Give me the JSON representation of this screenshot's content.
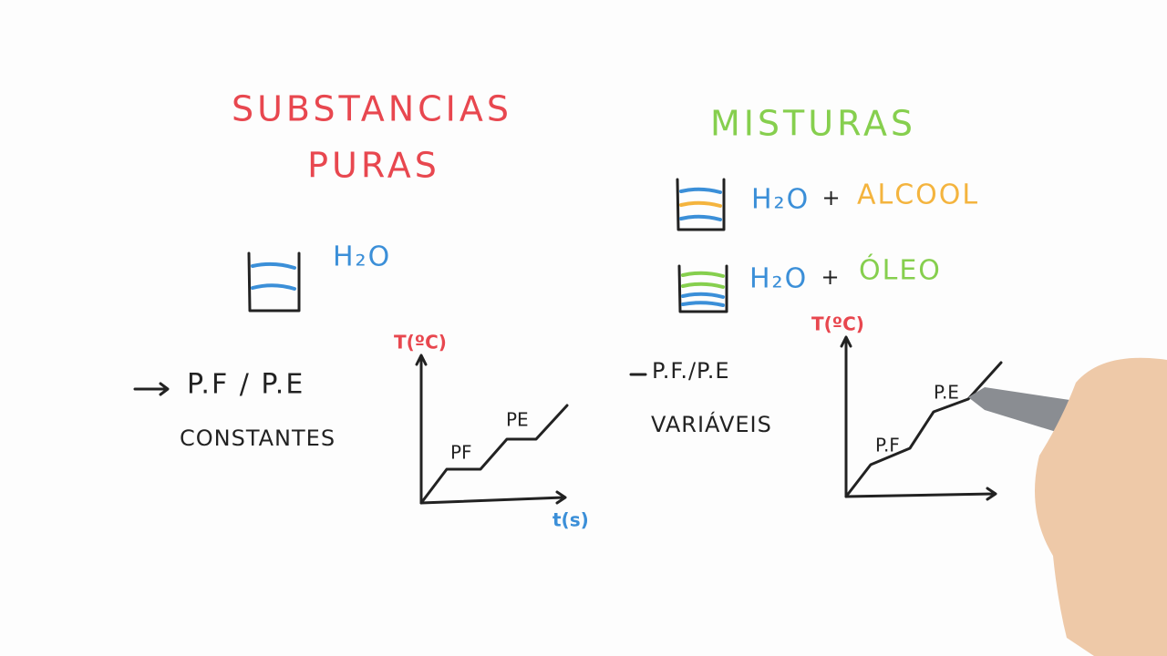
{
  "left": {
    "title": [
      "SUBSTANCIAS",
      "PURAS"
    ],
    "substance": "H₂O",
    "property": "P.F / P.E",
    "state": "CONSTANTES",
    "graph": {
      "y_label": "T(ºC)",
      "x_label": "t(s)",
      "plateaus": [
        "PF",
        "PE"
      ]
    }
  },
  "right": {
    "title": "MISTURAS",
    "mixtures": [
      {
        "a": "H₂O",
        "op": "+",
        "b": "ALCOOL"
      },
      {
        "a": "H₂O",
        "op": "+",
        "b": "ÓLEO"
      }
    ],
    "property": "P.F./P.E",
    "state": "VARIÁVEIS",
    "graph": {
      "y_label": "T(ºC)",
      "plateaus": [
        "P.F",
        "P.E"
      ]
    }
  }
}
